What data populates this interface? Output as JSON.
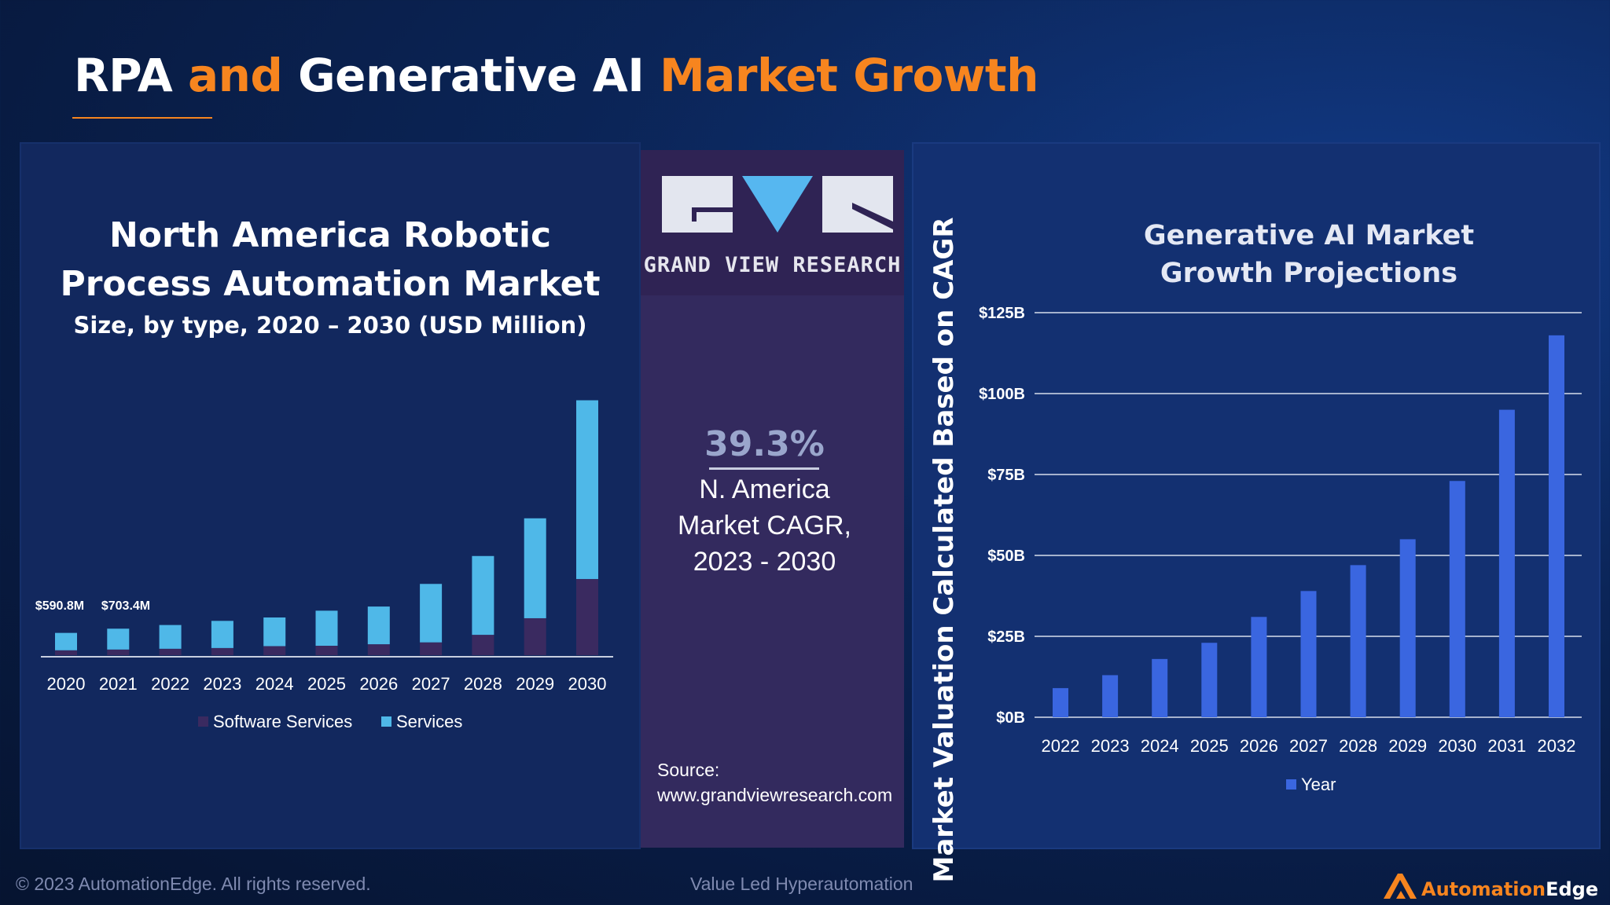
{
  "header": {
    "title_part1": "RPA ",
    "title_part2": "and ",
    "title_part3": "Generative AI ",
    "title_part4": "Market Growth",
    "accent_color": "#f7851f"
  },
  "left_panel": {
    "title_line1": "North America Robotic",
    "title_line2": "Process Automation Market",
    "subtitle": "Size, by type, 2020 – 2030 (USD Million)"
  },
  "middle_panel": {
    "logo_text": "GRAND VIEW RESEARCH",
    "cagr_value": "39.3%",
    "cagr_line1": "N. America",
    "cagr_line2": "Market CAGR,",
    "cagr_line3": "2023 - 2030",
    "source_label": "Source:",
    "source_url": "www.grandviewresearch.com"
  },
  "right_panel": {
    "title_line1": "Generative AI Market",
    "title_line2": "Growth Projections",
    "y_axis_title": "Market Valuation Calculated Based on CAGR"
  },
  "footer": {
    "copyright": "© 2023 AutomationEdge. All rights reserved.",
    "tagline": "Value Led Hyperautomation",
    "brand_part1": "Automation",
    "brand_part2": "Edge"
  },
  "chart_data": [
    {
      "type": "bar",
      "stacked": true,
      "categories": [
        "2020",
        "2021",
        "2022",
        "2023",
        "2024",
        "2025",
        "2026",
        "2027",
        "2028",
        "2029",
        "2030"
      ],
      "series": [
        {
          "name": "Software Services",
          "color": "#3a2a60",
          "values": [
            130,
            150,
            170,
            190,
            240,
            250,
            290,
            340,
            540,
            980,
            2020
          ]
        },
        {
          "name": "Services",
          "color": "#4fb8e8",
          "values": [
            461,
            553,
            630,
            720,
            760,
            930,
            1000,
            1550,
            2090,
            2650,
            4740
          ]
        }
      ],
      "data_labels": [
        "$590.8M",
        "$703.4M"
      ],
      "legend": "bottom",
      "ylim": [
        0,
        7000
      ]
    },
    {
      "type": "bar",
      "categories": [
        "2022",
        "2023",
        "2024",
        "2025",
        "2026",
        "2027",
        "2028",
        "2029",
        "2030",
        "2031",
        "2032"
      ],
      "series": [
        {
          "name": "Year",
          "color": "#3a66e0",
          "values": [
            9,
            13,
            18,
            23,
            31,
            39,
            47,
            55,
            73,
            95,
            118
          ]
        }
      ],
      "ylabel": "Market Valuation Calculated Based on CAGR",
      "yticks": [
        "$0B",
        "$25B",
        "$50B",
        "$75B",
        "$100B",
        "$125B"
      ],
      "ylim": [
        0,
        125
      ],
      "grid": true,
      "legend": "bottom"
    }
  ]
}
